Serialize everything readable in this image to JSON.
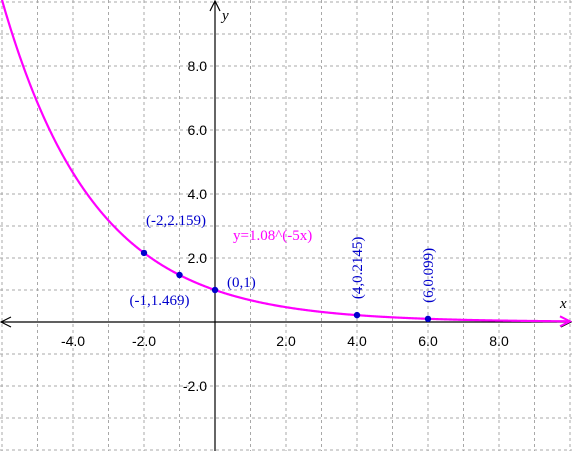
{
  "chart_data": {
    "type": "line",
    "title": "",
    "xlabel": "x",
    "ylabel": "y",
    "xlim": [
      -6.0,
      10.0
    ],
    "ylim": [
      -4.0,
      10.0
    ],
    "grid": true,
    "grid_step": 1.0,
    "x_ticks": [
      -4.0,
      -2.0,
      2.0,
      4.0,
      6.0,
      8.0
    ],
    "x_tick_labels": [
      "-4.0",
      "-2.0",
      "2.0",
      "4.0",
      "6.0",
      "8.0"
    ],
    "y_ticks": [
      8.0,
      6.0,
      4.0,
      2.0,
      -2.0
    ],
    "y_tick_labels": [
      "8.0",
      "6.0",
      "4.0",
      "2.0",
      "-2.0"
    ],
    "series": [
      {
        "name": "y=1.08^(-5x)",
        "color": "#ff00ff",
        "base": 1.08,
        "exponent_factor": -5,
        "x_range": [
          -6.0,
          10.0
        ]
      }
    ],
    "points": [
      {
        "x": -2,
        "y": 2.159,
        "label": "(-2,2.159)",
        "rotated": false
      },
      {
        "x": -1,
        "y": 1.469,
        "label": "(-1,1.469)",
        "rotated": false
      },
      {
        "x": 0,
        "y": 1,
        "label": "(0,1)",
        "rotated": false
      },
      {
        "x": 4,
        "y": 0.2145,
        "label": "(4,0.2145)",
        "rotated": true
      },
      {
        "x": 6,
        "y": 0.099,
        "label": "(6,0.099)",
        "rotated": true
      }
    ],
    "point_color": "#0000cc",
    "label_color": "#0000cc"
  }
}
